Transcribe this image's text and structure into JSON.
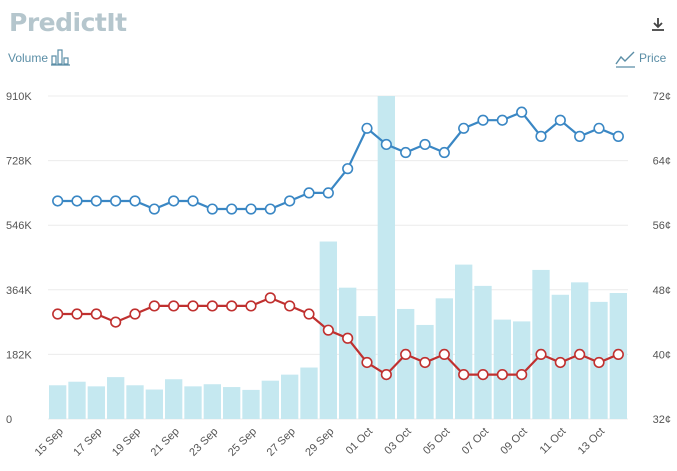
{
  "header": {
    "logo_text": "PredictIt",
    "download_icon": "download-icon"
  },
  "legend": {
    "volume_label": "Volume",
    "volume_icon": "bar-chart-icon",
    "price_label": "Price",
    "price_icon": "line-chart-icon"
  },
  "colors": {
    "volume_bars": "#c5e8f0",
    "series_blue": "#3a87c4",
    "series_red": "#c0302f",
    "text": "#5b8ea6"
  },
  "chart_data": {
    "type": "bar+line",
    "categories": [
      "15 Sep",
      "16 Sep",
      "17 Sep",
      "18 Sep",
      "19 Sep",
      "20 Sep",
      "21 Sep",
      "22 Sep",
      "23 Sep",
      "24 Sep",
      "25 Sep",
      "26 Sep",
      "27 Sep",
      "28 Sep",
      "29 Sep",
      "30 Sep",
      "01 Oct",
      "02 Oct",
      "03 Oct",
      "04 Oct",
      "05 Oct",
      "06 Oct",
      "07 Oct",
      "08 Oct",
      "09 Oct",
      "10 Oct",
      "11 Oct",
      "12 Oct",
      "13 Oct",
      "14 Oct"
    ],
    "x_tick_labels": [
      "15 Sep",
      "17 Sep",
      "19 Sep",
      "21 Sep",
      "23 Sep",
      "25 Sep",
      "27 Sep",
      "29 Sep",
      "01 Oct",
      "03 Oct",
      "05 Oct",
      "07 Oct",
      "09 Oct",
      "11 Oct",
      "13 Oct"
    ],
    "volume": {
      "axis_label": "Volume",
      "ylim": [
        0,
        910000
      ],
      "tick_labels": [
        "0",
        "182K",
        "364K",
        "546K",
        "728K",
        "910K"
      ],
      "values": [
        95000,
        105000,
        92000,
        118000,
        95000,
        83000,
        112000,
        92000,
        98000,
        90000,
        82000,
        108000,
        125000,
        145000,
        500000,
        370000,
        290000,
        910000,
        310000,
        265000,
        340000,
        435000,
        375000,
        280000,
        275000,
        420000,
        350000,
        385000,
        330000,
        355000
      ]
    },
    "price": {
      "axis_label": "Price",
      "ylim": [
        32,
        72
      ],
      "tick_labels": [
        "32¢",
        "40¢",
        "48¢",
        "56¢",
        "64¢",
        "72¢"
      ],
      "series": [
        {
          "color": "#3a87c4",
          "values": [
            59,
            59,
            59,
            59,
            59,
            58,
            59,
            59,
            58,
            58,
            58,
            58,
            59,
            60,
            60,
            63,
            68,
            66,
            65,
            66,
            65,
            68,
            69,
            69,
            70,
            67,
            69,
            67,
            68,
            67
          ]
        },
        {
          "color": "#c0302f",
          "values": [
            45,
            45,
            45,
            44,
            45,
            46,
            46,
            46,
            46,
            46,
            46,
            47,
            46,
            45,
            43,
            42,
            39,
            37.5,
            40,
            39,
            40,
            37.5,
            37.5,
            37.5,
            37.5,
            40,
            39,
            40,
            39,
            40
          ]
        }
      ]
    }
  }
}
